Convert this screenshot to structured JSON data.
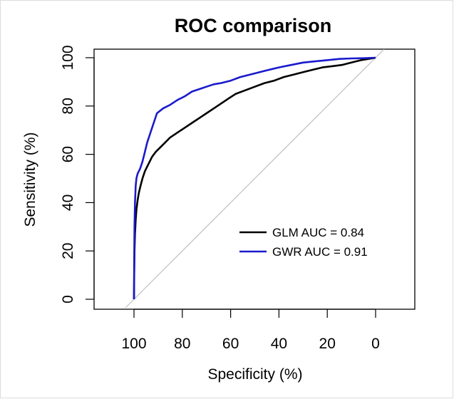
{
  "chart_data": {
    "type": "line",
    "title": "ROC comparison",
    "xlabel": "Specificity (%)",
    "ylabel": "Sensitivity (%)",
    "xlim": [
      100,
      0
    ],
    "ylim": [
      0,
      100
    ],
    "x_ticks": [
      100,
      80,
      60,
      40,
      20,
      0
    ],
    "y_ticks": [
      0,
      20,
      40,
      60,
      80,
      100
    ],
    "x_tick_labels": [
      "100",
      "80",
      "60",
      "40",
      "20",
      "0"
    ],
    "y_tick_labels": [
      "0",
      "20",
      "40",
      "60",
      "80",
      "100"
    ],
    "grid": false,
    "legend": {
      "placement": "bottom-right",
      "entries": [
        {
          "label": "GLM AUC = 0.84",
          "color": "#000000"
        },
        {
          "label": "GWR AUC = 0.91",
          "color": "#1a1acc"
        }
      ]
    },
    "reference_line": {
      "from": [
        100,
        0
      ],
      "to": [
        0,
        100
      ],
      "color": "#c0c0c0"
    },
    "series": [
      {
        "name": "GLM AUC = 0.84",
        "color": "#000000",
        "points": [
          [
            100,
            0
          ],
          [
            99.9,
            10
          ],
          [
            99.8,
            20
          ],
          [
            99.6,
            27
          ],
          [
            99.3,
            33
          ],
          [
            99,
            37
          ],
          [
            98.5,
            41
          ],
          [
            98,
            44
          ],
          [
            97.3,
            47
          ],
          [
            96.5,
            50
          ],
          [
            95.5,
            53
          ],
          [
            94,
            56
          ],
          [
            92.5,
            59
          ],
          [
            91,
            61
          ],
          [
            89,
            63
          ],
          [
            87,
            65
          ],
          [
            85,
            67
          ],
          [
            82,
            69
          ],
          [
            79,
            71
          ],
          [
            76,
            73
          ],
          [
            73,
            75
          ],
          [
            70,
            77
          ],
          [
            67,
            79
          ],
          [
            64,
            81
          ],
          [
            61,
            83
          ],
          [
            58,
            85
          ],
          [
            54,
            86.5
          ],
          [
            50,
            88
          ],
          [
            46,
            89.5
          ],
          [
            42,
            90.5
          ],
          [
            38,
            92
          ],
          [
            34,
            93
          ],
          [
            30,
            94
          ],
          [
            26,
            95
          ],
          [
            22,
            96
          ],
          [
            18,
            96.5
          ],
          [
            14,
            97
          ],
          [
            10,
            98
          ],
          [
            6,
            99
          ],
          [
            3,
            99.5
          ],
          [
            0,
            100
          ]
        ]
      },
      {
        "name": "GWR AUC = 0.91",
        "color": "#1a1acc",
        "points": [
          [
            100,
            0
          ],
          [
            99.9,
            15
          ],
          [
            99.8,
            30
          ],
          [
            99.6,
            40
          ],
          [
            99.3,
            47
          ],
          [
            99,
            50
          ],
          [
            98.5,
            52
          ],
          [
            97.5,
            54
          ],
          [
            96.5,
            57
          ],
          [
            95.5,
            61
          ],
          [
            94.5,
            65
          ],
          [
            93.5,
            68
          ],
          [
            92.5,
            71
          ],
          [
            91.5,
            74
          ],
          [
            90.5,
            77
          ],
          [
            88,
            79
          ],
          [
            85,
            80.5
          ],
          [
            82,
            82.5
          ],
          [
            79,
            84
          ],
          [
            76,
            86
          ],
          [
            73,
            87
          ],
          [
            70,
            88
          ],
          [
            67,
            89
          ],
          [
            64,
            89.5
          ],
          [
            60,
            90.5
          ],
          [
            56,
            92
          ],
          [
            52,
            93
          ],
          [
            48,
            94
          ],
          [
            44,
            95
          ],
          [
            40,
            96
          ],
          [
            35,
            97
          ],
          [
            30,
            98
          ],
          [
            25,
            98.5
          ],
          [
            20,
            99
          ],
          [
            15,
            99.5
          ],
          [
            10,
            99.7
          ],
          [
            5,
            99.8
          ],
          [
            0,
            100
          ]
        ]
      }
    ]
  }
}
